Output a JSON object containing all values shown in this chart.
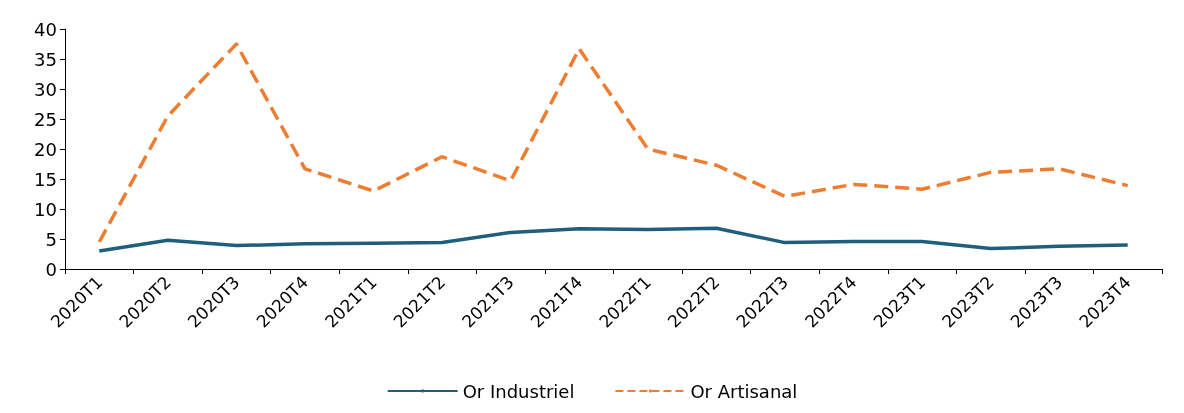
{
  "chart_data": {
    "type": "line",
    "categories": [
      "2020T1",
      "2020T2",
      "2020T3",
      "2020T4",
      "2021T1",
      "2021T2",
      "2021T3",
      "2021T4",
      "2022T1",
      "2022T2",
      "2022T3",
      "2022T4",
      "2023T1",
      "2023T2",
      "2023T3",
      "2023T4"
    ],
    "series": [
      {
        "name": "Or Industriel",
        "color": "#1f5f7e",
        "line_style": "solid",
        "values": [
          3.0,
          4.8,
          3.9,
          4.2,
          4.3,
          4.4,
          6.1,
          6.7,
          6.6,
          6.8,
          4.4,
          4.6,
          4.6,
          3.4,
          3.8,
          4.0
        ]
      },
      {
        "name": "Or Artisanal",
        "color": "#ed7d31",
        "line_style": "dashed",
        "values": [
          4.5,
          25.5,
          37.5,
          16.7,
          13.0,
          18.7,
          14.7,
          36.7,
          20.0,
          17.3,
          12.1,
          14.1,
          13.3,
          16.1,
          16.7,
          13.9
        ]
      }
    ],
    "ylim": [
      0,
      40
    ],
    "yticks": [
      0,
      5,
      10,
      15,
      20,
      25,
      30,
      35,
      40
    ],
    "grid": false,
    "legend": "bottom",
    "marker": "none"
  }
}
